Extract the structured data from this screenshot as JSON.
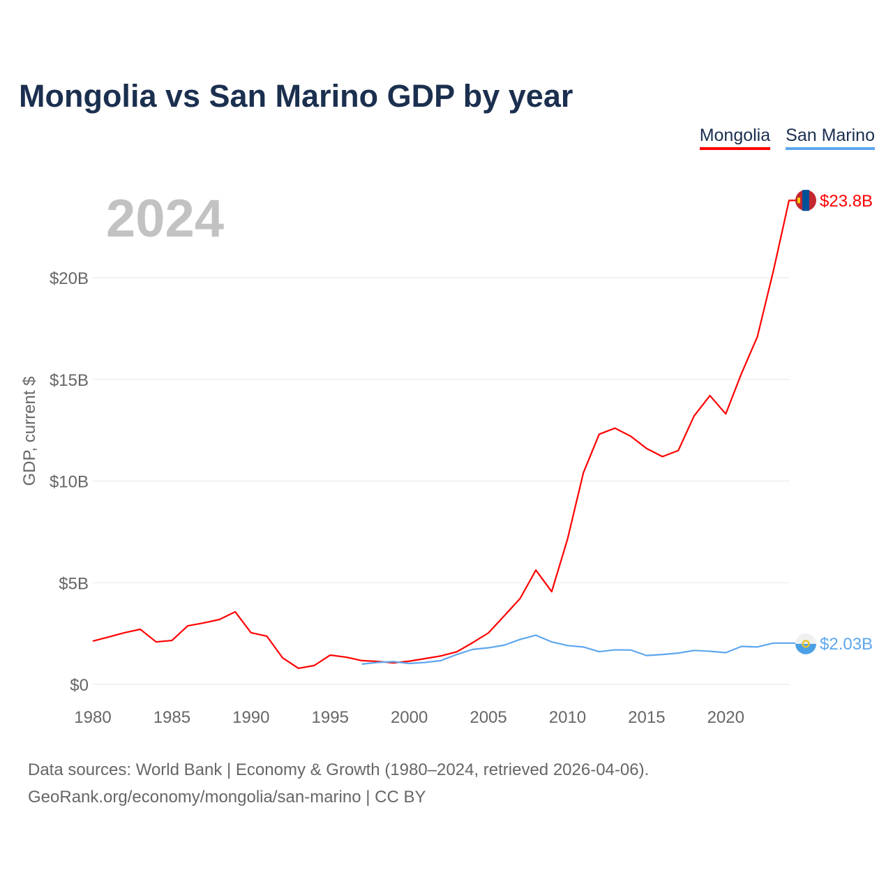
{
  "chart_data": {
    "type": "line",
    "title": "Mongolia vs San Marino GDP by year",
    "ylabel": "GDP, current $",
    "xlabel": "",
    "year_label": "2024",
    "xlim": [
      1980,
      2024
    ],
    "ylim": [
      0,
      25
    ],
    "x_ticks": [
      1980,
      1985,
      1990,
      1995,
      2000,
      2005,
      2010,
      2015,
      2020
    ],
    "y_ticks": [
      {
        "v": 0,
        "label": "$0"
      },
      {
        "v": 5,
        "label": "$5B"
      },
      {
        "v": 10,
        "label": "$10B"
      },
      {
        "v": 15,
        "label": "$15B"
      },
      {
        "v": 20,
        "label": "$20B"
      }
    ],
    "grid": true,
    "legend_placement": "top-right",
    "series": [
      {
        "name": "Mongolia",
        "color": "#ff0000",
        "end_label": "$23.8B",
        "x": [
          1980,
          1981,
          1982,
          1983,
          1984,
          1985,
          1986,
          1987,
          1988,
          1989,
          1990,
          1991,
          1992,
          1993,
          1994,
          1995,
          1996,
          1997,
          1998,
          1999,
          2000,
          2001,
          2002,
          2003,
          2004,
          2005,
          2006,
          2007,
          2008,
          2009,
          2010,
          2011,
          2012,
          2013,
          2014,
          2015,
          2016,
          2017,
          2018,
          2019,
          2020,
          2021,
          2022,
          2023,
          2024
        ],
        "values": [
          2.13,
          2.33,
          2.54,
          2.71,
          2.09,
          2.16,
          2.88,
          3.02,
          3.19,
          3.57,
          2.54,
          2.37,
          1.3,
          0.79,
          0.93,
          1.44,
          1.34,
          1.17,
          1.13,
          1.06,
          1.14,
          1.27,
          1.4,
          1.6,
          2.05,
          2.53,
          3.37,
          4.22,
          5.62,
          4.56,
          7.14,
          10.4,
          12.3,
          12.6,
          12.2,
          11.6,
          11.2,
          11.5,
          13.2,
          14.2,
          13.3,
          15.3,
          17.1,
          20.3,
          23.8
        ]
      },
      {
        "name": "San Marino",
        "color": "#5ea7ee",
        "end_label": "$2.03B",
        "x": [
          1997,
          1998,
          1999,
          2000,
          2001,
          2002,
          2003,
          2004,
          2005,
          2006,
          2007,
          2008,
          2009,
          2010,
          2011,
          2012,
          2013,
          2014,
          2015,
          2016,
          2017,
          2018,
          2019,
          2020,
          2021,
          2022,
          2023,
          2024
        ],
        "values": [
          1.0,
          1.08,
          1.12,
          1.03,
          1.08,
          1.17,
          1.47,
          1.72,
          1.8,
          1.93,
          2.21,
          2.42,
          2.09,
          1.91,
          1.84,
          1.61,
          1.7,
          1.69,
          1.42,
          1.47,
          1.54,
          1.67,
          1.63,
          1.56,
          1.87,
          1.84,
          2.03,
          2.03
        ]
      }
    ]
  },
  "footer": {
    "line1": "Data sources: World Bank | Economy & Growth (1980–2024, retrieved 2026-04-06).",
    "line2": "GeoRank.org/economy/mongolia/san-marino | CC BY"
  }
}
